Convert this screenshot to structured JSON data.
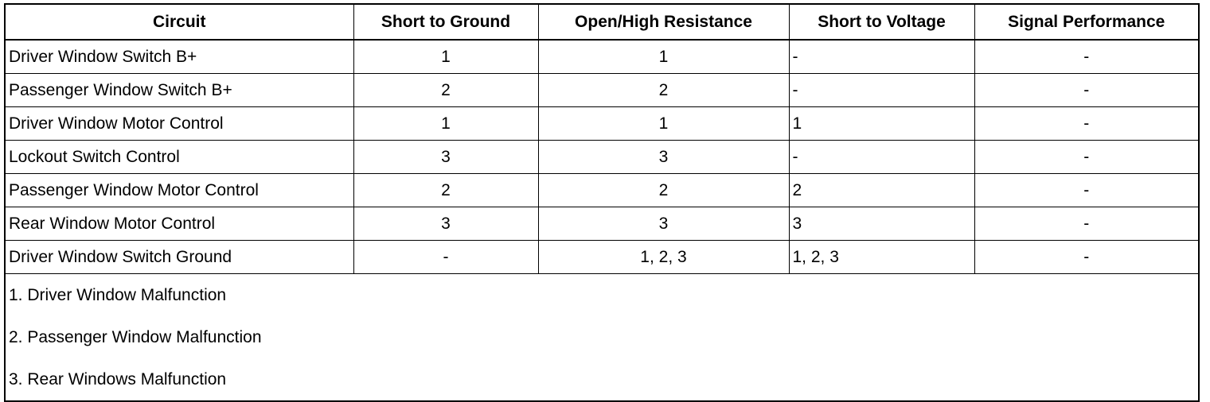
{
  "headers": [
    "Circuit",
    "Short to Ground",
    "Open/High Resistance",
    "Short to Voltage",
    "Signal Performance"
  ],
  "rows": [
    [
      "Driver Window Switch B+",
      "1",
      "1",
      "-",
      "-"
    ],
    [
      "Passenger Window Switch B+",
      "2",
      "2",
      "-",
      "-"
    ],
    [
      "Driver Window Motor Control",
      "1",
      "1",
      "1",
      "-"
    ],
    [
      "Lockout Switch Control",
      "3",
      "3",
      "-",
      "-"
    ],
    [
      "Passenger Window Motor Control",
      "2",
      "2",
      "2",
      "-"
    ],
    [
      "Rear Window Motor Control",
      "3",
      "3",
      "3",
      "-"
    ],
    [
      "Driver Window Switch Ground",
      "-",
      "1, 2, 3",
      "1, 2, 3",
      "-"
    ]
  ],
  "notes": [
    "1. Driver Window Malfunction",
    "2. Passenger Window Malfunction",
    "3. Rear Windows Malfunction"
  ]
}
